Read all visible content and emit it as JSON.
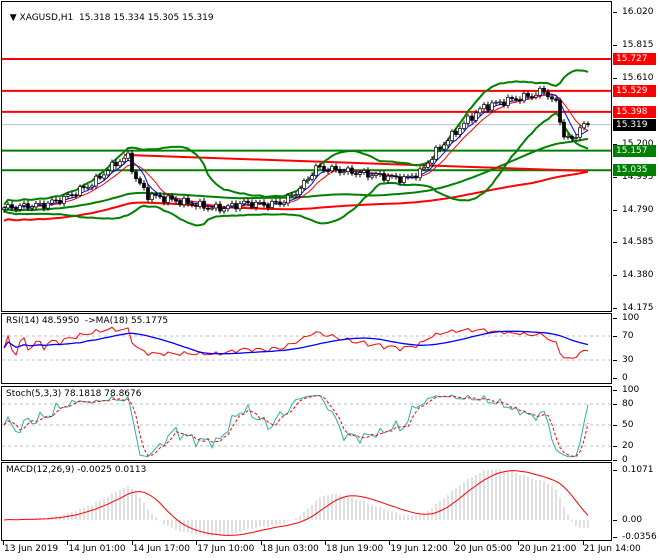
{
  "header": {
    "symbol": "XAGUSD,H1",
    "open": "15.318",
    "high": "15.334",
    "low": "15.305",
    "close": "15.319"
  },
  "price_axis": [
    "16.020",
    "15.815",
    "15.610",
    "15.200",
    "14.995",
    "14.790",
    "14.585",
    "14.380",
    "14.175"
  ],
  "levels": [
    {
      "label": "15.727",
      "price": 15.727,
      "color": "#ff0000"
    },
    {
      "label": "15.529",
      "price": 15.529,
      "color": "#ff0000"
    },
    {
      "label": "15.398",
      "price": 15.398,
      "color": "#ff0000"
    },
    {
      "label": "15.157",
      "price": 15.157,
      "color": "#008000"
    },
    {
      "label": "15.035",
      "price": 15.035,
      "color": "#008000"
    }
  ],
  "current_price": {
    "label": "15.319",
    "price": 15.319
  },
  "rsi": {
    "title": "RSI(14) 48.5950  ->MA(18) 55.1775",
    "axis": [
      "100",
      "70",
      "30",
      "0"
    ]
  },
  "stoch": {
    "title": "Stoch(5,3,3) 78.1818 78.8676",
    "axis": [
      "100",
      "80",
      "50",
      "20",
      "0"
    ]
  },
  "macd": {
    "title": "MACD(12,26,9) -0.0025 0.0113",
    "axis": [
      "0.1071",
      "0.00",
      "-0.0356"
    ]
  },
  "time_axis": [
    "13 Jun 2019",
    "14 Jun 01:00",
    "14 Jun 17:00",
    "17 Jun 10:00",
    "18 Jun 03:00",
    "18 Jun 19:00",
    "19 Jun 12:00",
    "20 Jun 05:00",
    "20 Jun 21:00",
    "21 Jun 14:00"
  ],
  "chart_data": {
    "type": "candlestick",
    "timeframe": "H1",
    "bar_count": 147,
    "close_keypoints": [
      [
        0,
        14.8
      ],
      [
        10,
        14.82
      ],
      [
        15,
        14.86
      ],
      [
        22,
        14.95
      ],
      [
        28,
        15.08
      ],
      [
        31,
        15.12
      ],
      [
        33,
        14.98
      ],
      [
        36,
        14.88
      ],
      [
        42,
        14.85
      ],
      [
        48,
        14.82
      ],
      [
        52,
        14.8
      ],
      [
        55,
        14.8
      ],
      [
        60,
        14.83
      ],
      [
        66,
        14.82
      ],
      [
        70,
        14.84
      ],
      [
        74,
        14.92
      ],
      [
        78,
        15.05
      ],
      [
        82,
        15.04
      ],
      [
        88,
        15.02
      ],
      [
        94,
        15.0
      ],
      [
        100,
        14.98
      ],
      [
        104,
        15.02
      ],
      [
        108,
        15.15
      ],
      [
        112,
        15.25
      ],
      [
        116,
        15.35
      ],
      [
        120,
        15.43
      ],
      [
        126,
        15.47
      ],
      [
        132,
        15.5
      ],
      [
        135,
        15.53
      ],
      [
        138,
        15.45
      ],
      [
        140,
        15.25
      ],
      [
        142,
        15.22
      ],
      [
        144,
        15.3
      ],
      [
        146,
        15.319
      ]
    ],
    "ylim": [
      14.175,
      16.02
    ],
    "colors": {
      "bollinger": "#008000",
      "ma_fast": "#0000ff",
      "ma_slow": "#ff0000",
      "rsi": "#ff0000",
      "rsi_ma": "#0000ff",
      "stoch_main": "#20b2aa",
      "stoch_signal": "#ff0000",
      "macd_hist": "#c0c0c0",
      "macd_signal": "#ff0000"
    }
  }
}
